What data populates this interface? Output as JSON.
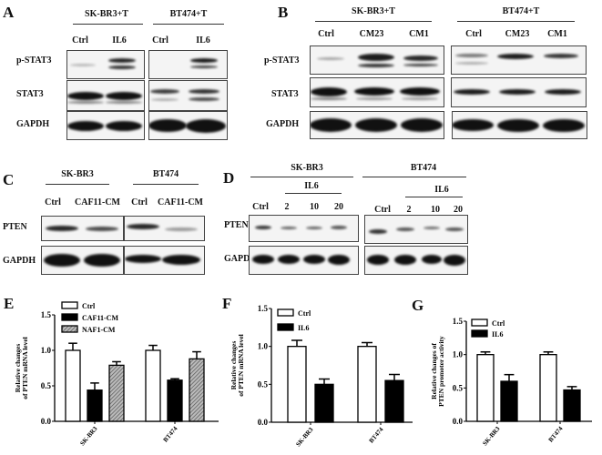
{
  "panels": {
    "A": {
      "label": "A",
      "groups": [
        "SK-BR3+T",
        "BT474+T"
      ],
      "lanes": [
        "Ctrl",
        "IL6",
        "Ctrl",
        "IL6"
      ],
      "rows": [
        "p-STAT3",
        "STAT3",
        "GAPDH"
      ]
    },
    "B": {
      "label": "B",
      "groups": [
        "SK-BR3+T",
        "BT474+T"
      ],
      "lanes": [
        "Ctrl",
        "CM23",
        "CM1",
        "Ctrl",
        "CM23",
        "CM1"
      ],
      "rows": [
        "p-STAT3",
        "STAT3",
        "GAPDH"
      ]
    },
    "C": {
      "label": "C",
      "groups": [
        "SK-BR3",
        "BT474"
      ],
      "lanes": [
        "Ctrl",
        "CAF11-CM",
        "Ctrl",
        "CAF11-CM"
      ],
      "rows": [
        "PTEN",
        "GAPDH"
      ]
    },
    "D": {
      "label": "D",
      "groups": [
        "SK-BR3",
        "BT474"
      ],
      "treatment": "IL6",
      "lanes": [
        "Ctrl",
        "2",
        "10",
        "20",
        "Ctrl",
        "2",
        "10",
        "20"
      ],
      "rows": [
        "PTEN",
        "GAPDH"
      ]
    },
    "E": {
      "label": "E"
    },
    "F": {
      "label": "F"
    },
    "G": {
      "label": "G"
    }
  },
  "chart_data": [
    {
      "panel": "E",
      "type": "bar",
      "categories": [
        "SK-BR3",
        "BT474"
      ],
      "series": [
        {
          "name": "Ctrl",
          "values": [
            1.0,
            1.0
          ],
          "errors": [
            0.1,
            0.07
          ]
        },
        {
          "name": "CAF11-CM",
          "values": [
            0.44,
            0.58
          ],
          "errors": [
            0.1,
            0.02
          ]
        },
        {
          "name": "NAF1-CM",
          "values": [
            0.79,
            0.88
          ],
          "errors": [
            0.05,
            0.1
          ]
        }
      ],
      "ylabel": [
        "Relative changes",
        "of PTEN mRNA level"
      ],
      "ylim": [
        0,
        1.5
      ],
      "yticks": [
        "0.0",
        "0.5",
        "1.0",
        "1.5"
      ],
      "legend": "top-left",
      "grid": false
    },
    {
      "panel": "F",
      "type": "bar",
      "categories": [
        "SK-BR3",
        "BT474"
      ],
      "series": [
        {
          "name": "Ctrl",
          "values": [
            1.0,
            1.0
          ],
          "errors": [
            0.08,
            0.05
          ]
        },
        {
          "name": "IL6",
          "values": [
            0.5,
            0.55
          ],
          "errors": [
            0.07,
            0.08
          ]
        }
      ],
      "ylabel": [
        "Relative changes",
        "of PTEN mRNA level"
      ],
      "ylim": [
        0,
        1.5
      ],
      "yticks": [
        "0.0",
        "0.5",
        "1.0",
        "1.5"
      ],
      "legend": "top-left",
      "grid": false
    },
    {
      "panel": "G",
      "type": "bar",
      "categories": [
        "SK-BR3",
        "BT474"
      ],
      "series": [
        {
          "name": "Ctrl",
          "values": [
            1.0,
            1.0
          ],
          "errors": [
            0.04,
            0.04
          ]
        },
        {
          "name": "IL6",
          "values": [
            0.6,
            0.47
          ],
          "errors": [
            0.1,
            0.05
          ]
        }
      ],
      "ylabel": [
        "Relative changes of",
        "PTEN promoter activity"
      ],
      "ylim": [
        0,
        1.5
      ],
      "yticks": [
        "0.0",
        "0.5",
        "1.0",
        "1.5"
      ],
      "legend": "top-left",
      "grid": false
    }
  ]
}
